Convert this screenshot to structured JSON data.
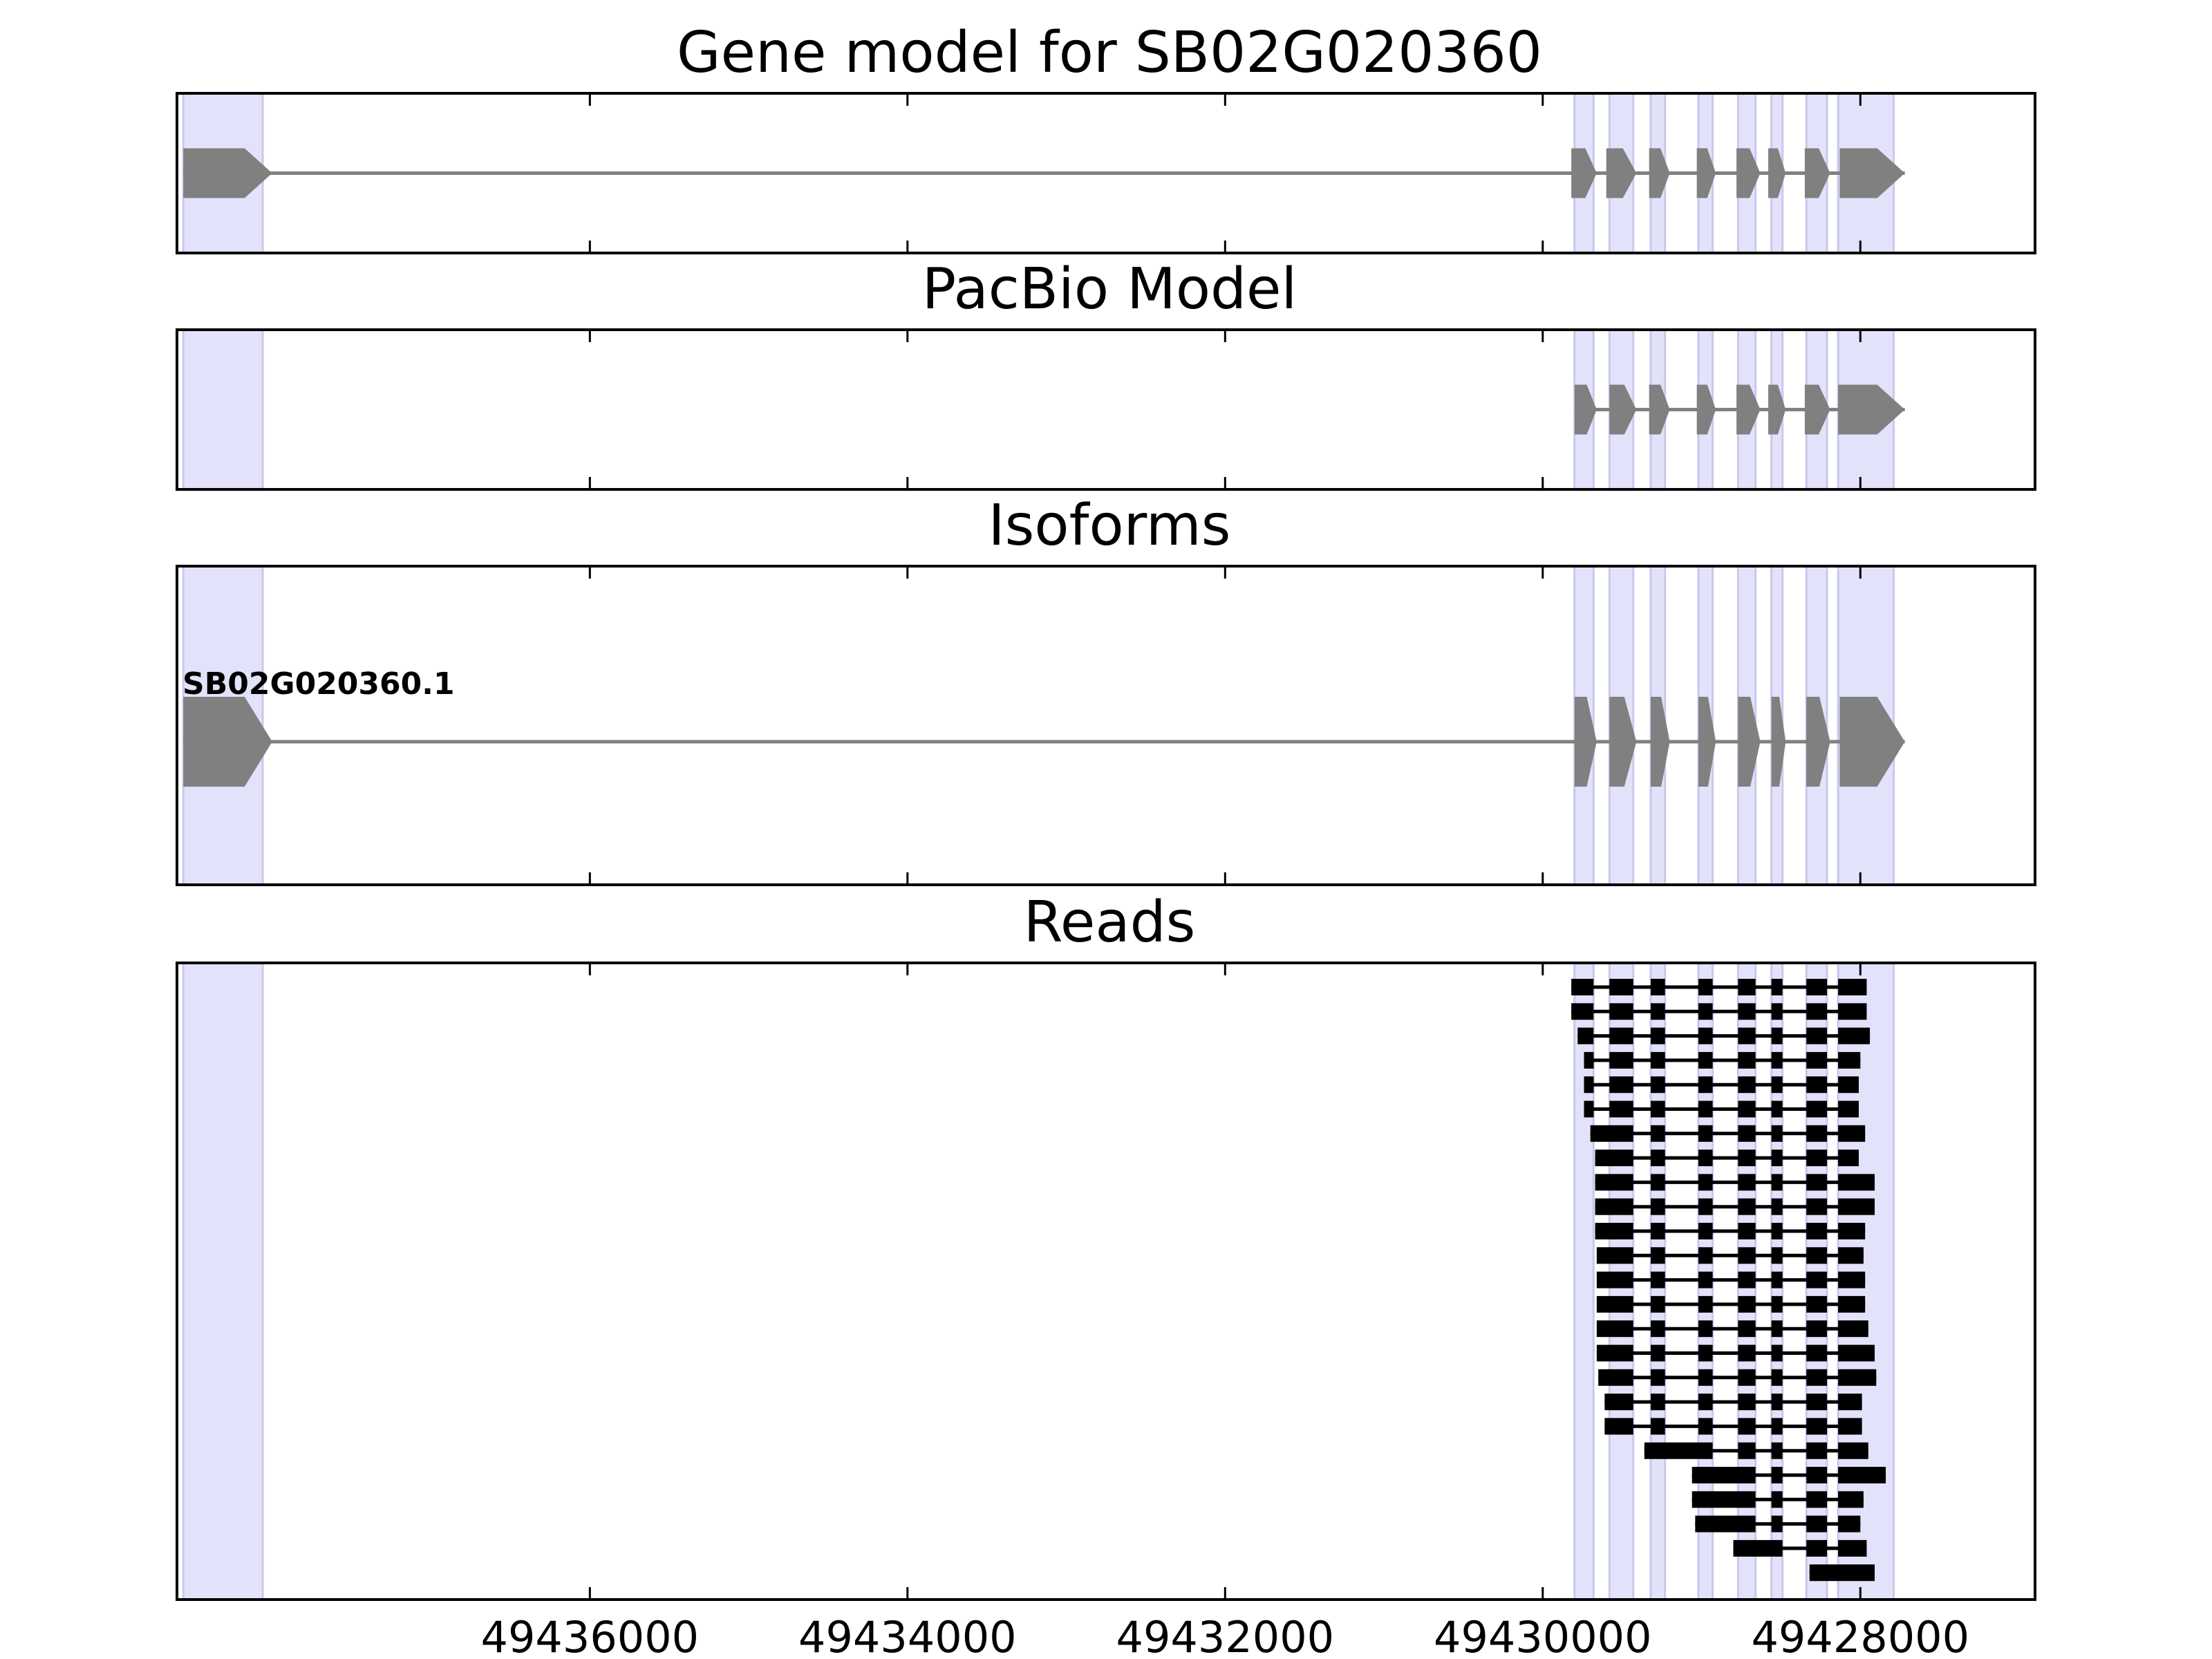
{
  "chart_data": {
    "type": "gene_structure",
    "xlim": [
      49438600,
      49426900
    ],
    "x_axis_reversed": true,
    "xticks": [
      49436000,
      49434000,
      49432000,
      49430000,
      49428000
    ],
    "xtick_labels": [
      "49436000",
      "49434000",
      "49432000",
      "49430000",
      "49428000"
    ],
    "colors": {
      "exon_highlight": "#e2e2fa",
      "exon_highlight_edge": "#c8c8ee",
      "gene_feature": "#808080",
      "read": "#000000"
    },
    "strand": "-",
    "exon_highlights": [
      [
        49438560,
        49438060
      ],
      [
        49429800,
        49429680
      ],
      [
        49429580,
        49429430
      ],
      [
        49429320,
        49429230
      ],
      [
        49429020,
        49428930
      ],
      [
        49428770,
        49428660
      ],
      [
        49428560,
        49428490
      ],
      [
        49428340,
        49428210
      ],
      [
        49428140,
        49427790
      ]
    ],
    "panels": [
      {
        "title": "Gene model for SB02G020360",
        "tracks": [
          {
            "label": "",
            "exons": [
              [
                49438560,
                49438000
              ],
              [
                49429820,
                49429660
              ],
              [
                49429600,
                49429410
              ],
              [
                49429330,
                49429200
              ],
              [
                49429030,
                49428910
              ],
              [
                49428780,
                49428630
              ],
              [
                49428580,
                49428470
              ],
              [
                49428350,
                49428190
              ],
              [
                49428130,
                49427720
              ]
            ]
          }
        ]
      },
      {
        "title": "PacBio Model",
        "tracks": [
          {
            "label": "",
            "exons": [
              [
                49429800,
                49429660
              ],
              [
                49429580,
                49429410
              ],
              [
                49429330,
                49429200
              ],
              [
                49429030,
                49428910
              ],
              [
                49428780,
                49428630
              ],
              [
                49428580,
                49428470
              ],
              [
                49428350,
                49428190
              ],
              [
                49428140,
                49427720
              ]
            ]
          }
        ]
      },
      {
        "title": "Isoforms",
        "tracks": [
          {
            "label": "SB02G020360.1",
            "exons": [
              [
                49438560,
                49438000
              ],
              [
                49429800,
                49429660
              ],
              [
                49429580,
                49429410
              ],
              [
                49429320,
                49429200
              ],
              [
                49429020,
                49428910
              ],
              [
                49428770,
                49428630
              ],
              [
                49428560,
                49428470
              ],
              [
                49428340,
                49428190
              ],
              [
                49428130,
                49427720
              ]
            ]
          }
        ]
      },
      {
        "title": "Reads",
        "reads": [
          {
            "start": 49429820,
            "end": 49427960,
            "drop": 0
          },
          {
            "start": 49429820,
            "end": 49427960,
            "drop": 0
          },
          {
            "start": 49429780,
            "end": 49427940,
            "drop": 0
          },
          {
            "start": 49429740,
            "end": 49428000,
            "drop": 0
          },
          {
            "start": 49429740,
            "end": 49428010,
            "drop": 0
          },
          {
            "start": 49429740,
            "end": 49428010,
            "drop": 0
          },
          {
            "start": 49429700,
            "end": 49427970,
            "drop": 1
          },
          {
            "start": 49429670,
            "end": 49428010,
            "drop": 1
          },
          {
            "start": 49429670,
            "end": 49427910,
            "drop": 1
          },
          {
            "start": 49429670,
            "end": 49427910,
            "drop": 1
          },
          {
            "start": 49429670,
            "end": 49427970,
            "drop": 1
          },
          {
            "start": 49429660,
            "end": 49427980,
            "drop": 1
          },
          {
            "start": 49429660,
            "end": 49427970,
            "drop": 1
          },
          {
            "start": 49429660,
            "end": 49427970,
            "drop": 1
          },
          {
            "start": 49429660,
            "end": 49427950,
            "drop": 1
          },
          {
            "start": 49429660,
            "end": 49427910,
            "drop": 1
          },
          {
            "start": 49429650,
            "end": 49427900,
            "drop": 1
          },
          {
            "start": 49429610,
            "end": 49427990,
            "drop": 1
          },
          {
            "start": 49429610,
            "end": 49427990,
            "drop": 1
          },
          {
            "start": 49429360,
            "end": 49427950,
            "drop": 3
          },
          {
            "start": 49429060,
            "end": 49427840,
            "drop": 4
          },
          {
            "start": 49429060,
            "end": 49427980,
            "drop": 4
          },
          {
            "start": 49429040,
            "end": 49428000,
            "drop": 4
          },
          {
            "start": 49428800,
            "end": 49427960,
            "drop": 5
          },
          {
            "start": 49428320,
            "end": 49427910,
            "drop": 7
          }
        ]
      }
    ]
  }
}
